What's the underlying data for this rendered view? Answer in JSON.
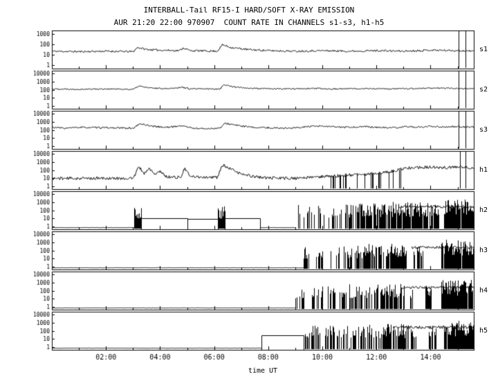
{
  "colors": {
    "fg": "#000000",
    "bg": "#ffffff"
  },
  "chart_data": {
    "type": "line",
    "title": "INTERBALL-Tail RF15-I HARD/SOFT X-RAY EMISSION",
    "subtitle": "AUR 21:20 22:00 970907  COUNT RATE IN CHANNELS s1-s3, h1-h5",
    "xlabel": "time UT",
    "x_range_hours": [
      0,
      15.6
    ],
    "x_ticks": [
      {
        "t": 2,
        "label": "02:00"
      },
      {
        "t": 4,
        "label": "04:00"
      },
      {
        "t": 6,
        "label": "06:00"
      },
      {
        "t": 8,
        "label": "08:00"
      },
      {
        "t": 10,
        "label": "10:00"
      },
      {
        "t": 12,
        "label": "12:00"
      },
      {
        "t": 14,
        "label": "14:00"
      }
    ],
    "panels": [
      {
        "label": "s1",
        "seed": 11,
        "yticks": [
          1000,
          100,
          10,
          1
        ],
        "ylog_range": [
          -0.3,
          3.3
        ],
        "trace": [
          {
            "noise": 0.09,
            "points": [
              [
                0,
                22
              ],
              [
                1,
                20
              ],
              [
                2,
                22
              ],
              [
                3,
                20
              ],
              [
                3.15,
                50
              ],
              [
                3.5,
                32
              ],
              [
                3.9,
                28
              ],
              [
                4.7,
                25
              ],
              [
                4.85,
                45
              ],
              [
                5.1,
                25
              ],
              [
                6.1,
                22
              ],
              [
                6.3,
                90
              ],
              [
                6.6,
                50
              ],
              [
                7.2,
                32
              ],
              [
                8,
                25
              ],
              [
                9,
                22
              ],
              [
                10,
                25
              ],
              [
                11,
                22
              ],
              [
                12,
                25
              ],
              [
                13,
                22
              ],
              [
                14,
                28
              ],
              [
                15,
                25
              ],
              [
                15.6,
                22
              ]
            ]
          }
        ],
        "vlines": [
          15.05,
          15.3
        ]
      },
      {
        "label": "s2",
        "seed": 22,
        "yticks": [
          10000,
          1000,
          100,
          10,
          1
        ],
        "ylog_range": [
          -0.3,
          4.3
        ],
        "trace": [
          {
            "noise": 0.08,
            "points": [
              [
                0,
                125
              ],
              [
                1,
                115
              ],
              [
                2,
                125
              ],
              [
                3,
                110
              ],
              [
                3.2,
                280
              ],
              [
                3.6,
                160
              ],
              [
                4.3,
                140
              ],
              [
                4.8,
                200
              ],
              [
                5.1,
                125
              ],
              [
                6.2,
                125
              ],
              [
                6.35,
                400
              ],
              [
                6.8,
                200
              ],
              [
                7.5,
                140
              ],
              [
                8.5,
                125
              ],
              [
                9.5,
                140
              ],
              [
                10.5,
                125
              ],
              [
                11.5,
                140
              ],
              [
                12.5,
                125
              ],
              [
                13.5,
                140
              ],
              [
                14.2,
                160
              ],
              [
                15,
                140
              ],
              [
                15.6,
                125
              ]
            ]
          }
        ],
        "vlines": [
          15.05,
          15.3
        ]
      },
      {
        "label": "s3",
        "seed": 33,
        "yticks": [
          10000,
          1000,
          100,
          10,
          1
        ],
        "ylog_range": [
          -0.3,
          4.3
        ],
        "trace": [
          {
            "noise": 0.1,
            "points": [
              [
                0,
                200
              ],
              [
                0.5,
                160
              ],
              [
                1,
                200
              ],
              [
                2,
                180
              ],
              [
                3,
                160
              ],
              [
                3.25,
                560
              ],
              [
                3.7,
                280
              ],
              [
                4.2,
                200
              ],
              [
                4.8,
                320
              ],
              [
                5.2,
                160
              ],
              [
                5.6,
                140
              ],
              [
                6.2,
                160
              ],
              [
                6.4,
                630
              ],
              [
                6.9,
                320
              ],
              [
                7.4,
                200
              ],
              [
                8,
                180
              ],
              [
                8.8,
                160
              ],
              [
                9.5,
                250
              ],
              [
                10,
                280
              ],
              [
                10.5,
                220
              ],
              [
                11,
                200
              ],
              [
                11.5,
                250
              ],
              [
                12,
                200
              ],
              [
                12.7,
                180
              ],
              [
                13.2,
                250
              ],
              [
                13.6,
                200
              ],
              [
                14,
                280
              ],
              [
                14.5,
                220
              ],
              [
                15,
                250
              ],
              [
                15.6,
                220
              ]
            ]
          }
        ],
        "vlines": [
          15.05,
          15.3
        ]
      },
      {
        "label": "h1",
        "seed": 44,
        "yticks": [
          10000,
          1000,
          100,
          10,
          1
        ],
        "ylog_range": [
          -0.3,
          4.3
        ],
        "trace": [
          {
            "noise": 0.18,
            "points": [
              [
                0,
                10
              ],
              [
                1,
                10
              ],
              [
                2,
                10
              ],
              [
                3,
                10
              ],
              [
                3.2,
                250
              ],
              [
                3.4,
                40
              ],
              [
                3.6,
                160
              ],
              [
                3.8,
                25
              ],
              [
                4,
                80
              ],
              [
                4.2,
                16
              ],
              [
                4.75,
                13
              ],
              [
                4.9,
                160
              ],
              [
                5.1,
                16
              ],
              [
                6.1,
                13
              ],
              [
                6.3,
                400
              ],
              [
                6.6,
                125
              ],
              [
                7,
                32
              ],
              [
                7.5,
                16
              ],
              [
                8,
                11
              ],
              [
                9,
                10
              ],
              [
                9.5,
                13
              ],
              [
                10,
                16
              ],
              [
                10.5,
                20
              ],
              [
                11,
                25
              ],
              [
                11.5,
                32
              ],
              [
                12,
                40
              ],
              [
                12.5,
                63
              ],
              [
                13,
                160
              ],
              [
                13.5,
                200
              ],
              [
                14,
                220
              ],
              [
                14.5,
                200
              ],
              [
                15,
                220
              ],
              [
                15.6,
                200
              ]
            ]
          }
        ],
        "dropouts": [
          {
            "t0": 10.3,
            "t1": 13,
            "density": 0.18
          }
        ],
        "vlines": [
          15.1,
          15.3
        ]
      },
      {
        "label": "h2",
        "seed": 55,
        "yticks": [
          10000,
          1000,
          100,
          10,
          1
        ],
        "ylog_range": [
          -0.3,
          4.3
        ],
        "trace": [
          {
            "noise": 0.02,
            "points": [
              [
                0,
                0.8
              ],
              [
                3.05,
                0.8
              ]
            ]
          },
          {
            "noise": 0.02,
            "points": [
              [
                7.7,
                0.8
              ],
              [
                9,
                0.8
              ]
            ]
          },
          {
            "noise": 0.15,
            "points": [
              [
                12.8,
                250
              ],
              [
                13.2,
                280
              ],
              [
                13.6,
                250
              ],
              [
                14,
                280
              ],
              [
                14.5,
                250
              ],
              [
                15,
                280
              ],
              [
                15.6,
                250
              ]
            ]
          }
        ],
        "steps": [
          {
            "t0": 3.3,
            "t1": 5,
            "level": 11
          },
          {
            "t0": 5,
            "t1": 6.15,
            "level": 9
          },
          {
            "t0": 6.4,
            "t1": 7.7,
            "level": 11
          }
        ],
        "bursts": [
          {
            "t0": 3.05,
            "t1": 3.3,
            "density": 0.9,
            "vmax": 300
          },
          {
            "t0": 6.15,
            "t1": 6.4,
            "density": 0.9,
            "vmax": 300
          },
          {
            "t0": 9,
            "t1": 10.3,
            "density": 0.25,
            "vmax": 500
          },
          {
            "t0": 10.3,
            "t1": 11.3,
            "density": 0.45,
            "vmax": 600
          },
          {
            "t0": 11.3,
            "t1": 12.6,
            "density": 0.7,
            "vmax": 700
          },
          {
            "t0": 12.6,
            "t1": 13.6,
            "density": 0.95,
            "vmax": 1000
          },
          {
            "t0": 13.6,
            "t1": 14.35,
            "density": 0.85,
            "vmax": 1000
          },
          {
            "t0": 14.5,
            "t1": 15.6,
            "density": 0.97,
            "vmax": 2000
          }
        ]
      },
      {
        "label": "h3",
        "seed": 66,
        "yticks": [
          10000,
          1000,
          100,
          10,
          1
        ],
        "ylog_range": [
          -0.3,
          4.3
        ],
        "trace": [
          {
            "noise": 0.02,
            "points": [
              [
                0,
                0.8
              ],
              [
                9.3,
                0.8
              ]
            ]
          },
          {
            "noise": 0.15,
            "points": [
              [
                13.3,
                220
              ],
              [
                14,
                250
              ],
              [
                14.5,
                220
              ],
              [
                15,
                250
              ],
              [
                15.6,
                220
              ]
            ]
          }
        ],
        "bursts": [
          {
            "t0": 9.3,
            "t1": 9.55,
            "density": 0.7,
            "vmax": 400
          },
          {
            "t0": 9.7,
            "t1": 10,
            "density": 0.35,
            "vmax": 350
          },
          {
            "t0": 10.2,
            "t1": 10.7,
            "density": 0.3,
            "vmax": 400
          },
          {
            "t0": 10.8,
            "t1": 11.5,
            "density": 0.45,
            "vmax": 500
          },
          {
            "t0": 11.5,
            "t1": 12.4,
            "density": 0.6,
            "vmax": 600
          },
          {
            "t0": 12.4,
            "t1": 13.1,
            "density": 0.95,
            "vmax": 800
          },
          {
            "t0": 13.35,
            "t1": 13.7,
            "density": 0.5,
            "vmax": 500
          },
          {
            "t0": 14.4,
            "t1": 15.6,
            "density": 0.96,
            "vmax": 2000
          }
        ]
      },
      {
        "label": "h4",
        "seed": 77,
        "yticks": [
          10000,
          1000,
          100,
          10,
          1
        ],
        "ylog_range": [
          -0.3,
          4.3
        ],
        "trace": [
          {
            "noise": 0.02,
            "points": [
              [
                0,
                0.8
              ],
              [
                9,
                0.8
              ]
            ]
          },
          {
            "noise": 0.15,
            "points": [
              [
                12.9,
                220
              ],
              [
                13.5,
                250
              ],
              [
                14,
                220
              ],
              [
                14.5,
                250
              ],
              [
                15,
                220
              ],
              [
                15.6,
                250
              ]
            ]
          }
        ],
        "bursts": [
          {
            "t0": 9,
            "t1": 9.3,
            "density": 0.55,
            "vmax": 400
          },
          {
            "t0": 9.6,
            "t1": 10,
            "density": 0.4,
            "vmax": 400
          },
          {
            "t0": 10.2,
            "t1": 11,
            "density": 0.4,
            "vmax": 450
          },
          {
            "t0": 11,
            "t1": 12.2,
            "density": 0.55,
            "vmax": 600
          },
          {
            "t0": 12.2,
            "t1": 12.9,
            "density": 0.8,
            "vmax": 700
          },
          {
            "t0": 12.9,
            "t1": 13.4,
            "density": 0.5,
            "vmax": 500
          },
          {
            "t0": 13.8,
            "t1": 14.1,
            "density": 0.6,
            "vmax": 600
          },
          {
            "t0": 14.4,
            "t1": 15.6,
            "density": 0.96,
            "vmax": 2000
          }
        ]
      },
      {
        "label": "h5",
        "seed": 88,
        "yticks": [
          10000,
          1000,
          100,
          10,
          1
        ],
        "ylog_range": [
          -0.3,
          4.3
        ],
        "trace": [
          {
            "noise": 0.02,
            "points": [
              [
                0,
                0.8
              ],
              [
                7.75,
                0.8
              ]
            ]
          },
          {
            "noise": 0.18,
            "points": [
              [
                12.6,
                280
              ],
              [
                13,
                250
              ],
              [
                13.5,
                280
              ],
              [
                14,
                250
              ],
              [
                14.5,
                280
              ],
              [
                15,
                250
              ],
              [
                15.6,
                280
              ]
            ]
          }
        ],
        "steps": [
          {
            "t0": 7.75,
            "t1": 9.3,
            "level": 30
          }
        ],
        "bursts": [
          {
            "t0": 9.3,
            "t1": 9.9,
            "density": 0.5,
            "vmax": 400
          },
          {
            "t0": 10.1,
            "t1": 11.2,
            "density": 0.5,
            "vmax": 450
          },
          {
            "t0": 11.2,
            "t1": 12.3,
            "density": 0.6,
            "vmax": 600
          },
          {
            "t0": 12.3,
            "t1": 13,
            "density": 0.85,
            "vmax": 700
          },
          {
            "t0": 13,
            "t1": 13.5,
            "density": 0.6,
            "vmax": 600
          },
          {
            "t0": 13.9,
            "t1": 14.2,
            "density": 0.7,
            "vmax": 700
          },
          {
            "t0": 14.5,
            "t1": 15.6,
            "density": 0.96,
            "vmax": 2000
          }
        ]
      }
    ]
  }
}
